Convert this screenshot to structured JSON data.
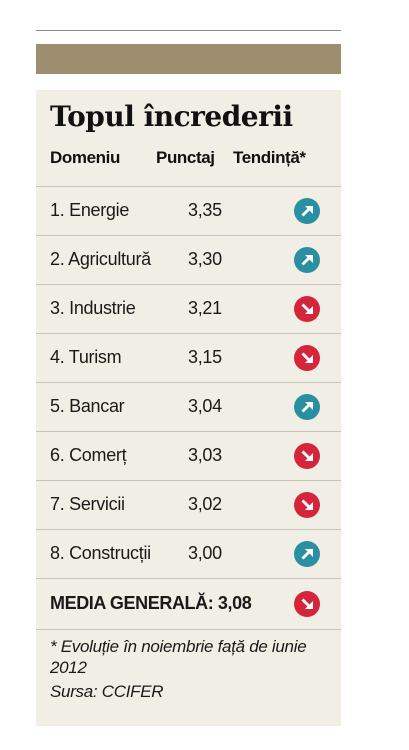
{
  "title": "Topul încrederii",
  "columns": {
    "domain": "Domeniu",
    "score": "Punctaj",
    "trend": "Tendință*"
  },
  "rows": [
    {
      "name": "1. Energie",
      "score": "3,35",
      "trend": "up",
      "icon": "arrow-up-right-icon"
    },
    {
      "name": "2. Agricultură",
      "score": "3,30",
      "trend": "up",
      "icon": "arrow-up-right-icon"
    },
    {
      "name": "3. Industrie",
      "score": "3,21",
      "trend": "down",
      "icon": "arrow-down-right-icon"
    },
    {
      "name": "4. Turism",
      "score": "3,15",
      "trend": "down",
      "icon": "arrow-down-right-icon"
    },
    {
      "name": "5. Bancar",
      "score": "3,04",
      "trend": "up",
      "icon": "arrow-up-right-icon"
    },
    {
      "name": "6. Comerț",
      "score": "3,03",
      "trend": "down",
      "icon": "arrow-down-right-icon"
    },
    {
      "name": "7. Servicii",
      "score": "3,02",
      "trend": "down",
      "icon": "arrow-down-right-icon"
    },
    {
      "name": "8. Construcții",
      "score": "3,00",
      "trend": "up",
      "icon": "arrow-up-right-icon"
    }
  ],
  "summary": {
    "label": "MEDIA GENERALĂ: 3,08",
    "trend": "down",
    "icon": "arrow-down-right-icon"
  },
  "footnote": "* Evoluție în noiembrie față de iunie 2012",
  "source": "Sursa: CCIFER",
  "colors": {
    "header_band": "#9e8d6f",
    "card_background": "#f1eee6",
    "trend_up": "#2a8fa0",
    "trend_down": "#d4253b"
  }
}
